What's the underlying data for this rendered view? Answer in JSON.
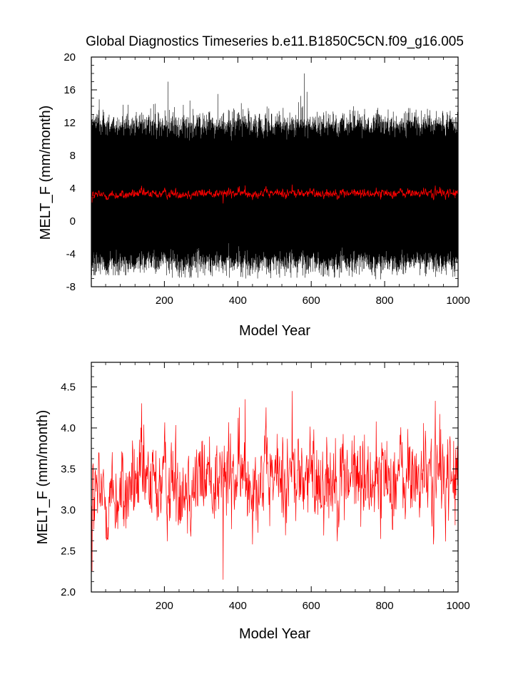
{
  "chart_data": [
    {
      "type": "line",
      "title": "Global Diagnostics Timeseries b.e11.B1850C5CN.f09_g16.005",
      "xlabel": "Model Year",
      "ylabel": "MELT_F (mm/month)",
      "xlim": [
        1,
        1000
      ],
      "ylim": [
        -8,
        20
      ],
      "xticks": [
        200,
        400,
        600,
        800,
        1000
      ],
      "yticks": [
        -8,
        -4,
        0,
        4,
        8,
        12,
        16,
        20
      ],
      "xtick_labels": [
        "200",
        "400",
        "600",
        "800",
        "1000"
      ],
      "ytick_labels": [
        "-8",
        "-4",
        "0",
        "4",
        "8",
        "12",
        "16",
        "20"
      ],
      "grid": false,
      "legend": "none",
      "series": [
        {
          "color": "#000000",
          "resolution": "monthly",
          "envelope_max_by_century": [
            15.6,
            16.6,
            17.0,
            16.3,
            16.4,
            18.0,
            15.4,
            15.6,
            15.7,
            15.2
          ],
          "envelope_min_by_century": [
            -6.6,
            -6.9,
            -6.9,
            -6.9,
            -7.0,
            -6.9,
            -6.9,
            -7.1,
            -6.6,
            -6.8
          ],
          "typical_high": 12.5,
          "typical_low": -4.5,
          "min": -7.1,
          "max": 18.0
        },
        {
          "color": "#ff0000",
          "resolution": "annual mean",
          "mean": 3.35,
          "min": 2.15,
          "max": 4.45
        }
      ]
    },
    {
      "type": "line",
      "title": "",
      "xlabel": "Model Year",
      "ylabel": "MELT_F (mm/month)",
      "xlim": [
        1,
        1000
      ],
      "ylim": [
        2.0,
        4.8
      ],
      "xticks": [
        200,
        400,
        600,
        800,
        1000
      ],
      "yticks": [
        2.0,
        2.5,
        3.0,
        3.5,
        4.0,
        4.5
      ],
      "xtick_labels": [
        "200",
        "400",
        "600",
        "800",
        "1000"
      ],
      "ytick_labels": [
        "2.0",
        "2.5",
        "3.0",
        "3.5",
        "4.0",
        "4.5"
      ],
      "grid": false,
      "legend": "none",
      "series": [
        {
          "color": "#ff0000",
          "resolution": "annual mean",
          "start_value": 2.25,
          "mean_by_century": [
            3.15,
            3.3,
            3.35,
            3.4,
            3.4,
            3.4,
            3.4,
            3.4,
            3.4,
            3.4
          ],
          "spread": 0.28,
          "min": 2.15,
          "max": 4.45,
          "annotated_extremes": [
            {
              "x": 3,
              "y": 2.25
            },
            {
              "x": 138,
              "y": 4.3
            },
            {
              "x": 360,
              "y": 2.15
            },
            {
              "x": 420,
              "y": 4.35
            },
            {
              "x": 548,
              "y": 4.45
            },
            {
              "x": 938,
              "y": 4.33
            }
          ]
        }
      ]
    }
  ]
}
